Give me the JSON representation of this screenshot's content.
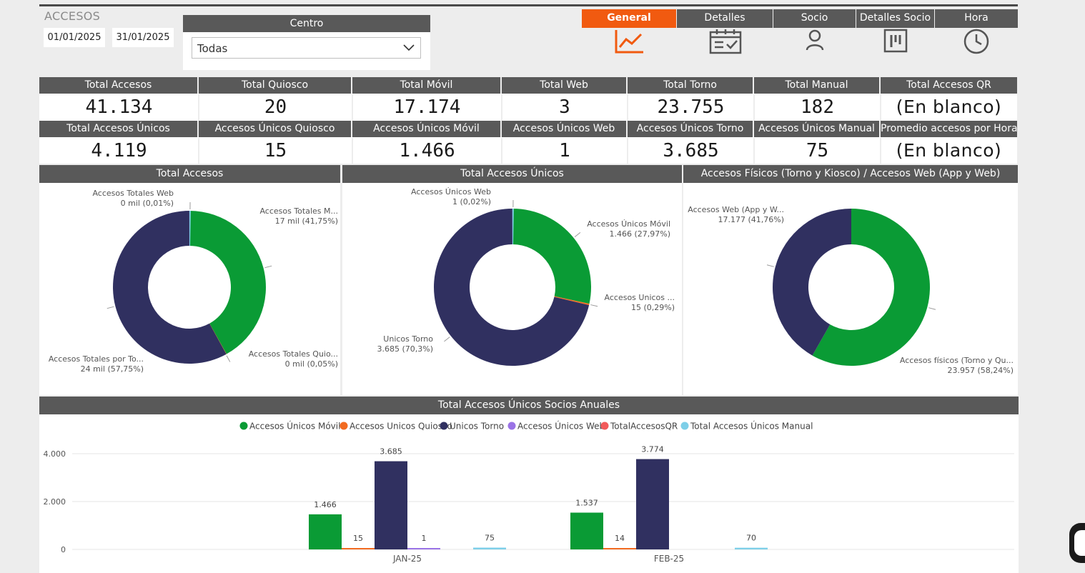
{
  "page": {
    "label": "ACCESOS"
  },
  "filters": {
    "date_start": "01/01/2025",
    "date_end": "31/01/2025",
    "centro_title": "Centro",
    "centro_value": "Todas"
  },
  "tabs": [
    {
      "label": "General",
      "icon": "line-chart-icon",
      "active": true
    },
    {
      "label": "Detalles",
      "icon": "calendar-check-icon"
    },
    {
      "label": "Socio",
      "icon": "user-icon"
    },
    {
      "label": "Detalles Socio",
      "icon": "board-icon"
    },
    {
      "label": "Hora",
      "icon": "clock-icon"
    }
  ],
  "kpis_row1": [
    {
      "label": "Total Accesos",
      "value": "41.134"
    },
    {
      "label": "Total Quiosco",
      "value": "20"
    },
    {
      "label": "Total Móvil",
      "value": "17.174"
    },
    {
      "label": "Total Web",
      "value": "3"
    },
    {
      "label": "Total Torno",
      "value": "23.755"
    },
    {
      "label": "Total Manual",
      "value": "182"
    },
    {
      "label": "Total Accesos QR",
      "value": "(En blanco)"
    }
  ],
  "kpis_row2": [
    {
      "label": "Total Accesos Únicos",
      "value": "4.119"
    },
    {
      "label": "Accesos Únicos Quiosco",
      "value": "15"
    },
    {
      "label": "Accesos Únicos Móvil",
      "value": "1.466"
    },
    {
      "label": "Accesos Únicos Web",
      "value": "1"
    },
    {
      "label": "Accesos Únicos Torno",
      "value": "3.685"
    },
    {
      "label": "Accesos Únicos Manual",
      "value": "75"
    },
    {
      "label": "Promedio accesos por Horas",
      "value": "(En blanco)"
    }
  ],
  "colors": {
    "green": "#0a9b35",
    "navy": "#303060",
    "orange": "#f26b21",
    "purple": "#9a73e6",
    "red": "#f25a5a",
    "lightblue": "#7ecfe8",
    "header": "#595959",
    "accent": "#f15a10"
  },
  "chart_data": [
    {
      "type": "pie",
      "title": "Total Accesos",
      "slices": [
        {
          "label": "Accesos Totales M...",
          "value": 17174,
          "display": "17 mil (41,75%)",
          "color": "#0a9b35"
        },
        {
          "label": "Accesos Totales Quio...",
          "value": 20,
          "display": "0 mil (0,05%)",
          "color": "#f26b21"
        },
        {
          "label": "Accesos Totales por To...",
          "value": 23755,
          "display": "24 mil (57,75%)",
          "color": "#303060"
        },
        {
          "label": "Accesos Totales Web",
          "value": 3,
          "display": "0 mil (0,01%)",
          "color": "#7ecfe8"
        }
      ]
    },
    {
      "type": "pie",
      "title": "Total Accesos Únicos",
      "slices": [
        {
          "label": "Accesos Únicos Móvil",
          "value": 1466,
          "display": "1.466 (27,97%)",
          "color": "#0a9b35"
        },
        {
          "label": "Accesos Unicos ...",
          "value": 15,
          "display": "15 (0,29%)",
          "color": "#f26b21"
        },
        {
          "label": "Unicos Torno",
          "value": 3685,
          "display": "3.685 (70,3%)",
          "color": "#303060"
        },
        {
          "label": "Accesos Únicos Web",
          "value": 1,
          "display": "1 (0,02%)",
          "color": "#7ecfe8"
        }
      ]
    },
    {
      "type": "pie",
      "title": "Accesos Físicos (Torno y Kiosco) / Accesos Web (App y Web)",
      "slices": [
        {
          "label": "Accesos físicos (Torno y Qu...",
          "value": 23957,
          "display": "23.957 (58,24%)",
          "color": "#0a9b35"
        },
        {
          "label": "Accesos Web (App y W...",
          "value": 17177,
          "display": "17.177 (41,76%)",
          "color": "#303060"
        }
      ]
    },
    {
      "type": "bar",
      "title": "Total Accesos Únicos Socios Anuales",
      "categories": [
        "JAN-25",
        "FEB-25"
      ],
      "ylim": [
        0,
        4000
      ],
      "yticks": [
        "0",
        "2.000",
        "4.000"
      ],
      "series": [
        {
          "name": "Accesos Únicos Móvil",
          "values": [
            1466,
            1537
          ],
          "labels": [
            "1.466",
            "1.537"
          ],
          "color": "#0a9b35"
        },
        {
          "name": "Accesos Unicos Quiosco",
          "values": [
            15,
            14
          ],
          "labels": [
            "15",
            "14"
          ],
          "color": "#f26b21"
        },
        {
          "name": "Unicos Torno",
          "values": [
            3685,
            3774
          ],
          "labels": [
            "3.685",
            "3.774"
          ],
          "color": "#303060"
        },
        {
          "name": "Accesos Únicos Web",
          "values": [
            1,
            null
          ],
          "labels": [
            "1",
            ""
          ],
          "color": "#9a73e6"
        },
        {
          "name": "TotalAccesosQR",
          "values": [
            null,
            null
          ],
          "labels": [
            "",
            ""
          ],
          "color": "#f25a5a"
        },
        {
          "name": "Total Accesos Únicos Manual",
          "values": [
            75,
            70
          ],
          "labels": [
            "75",
            "70"
          ],
          "color": "#7ecfe8"
        }
      ]
    }
  ]
}
